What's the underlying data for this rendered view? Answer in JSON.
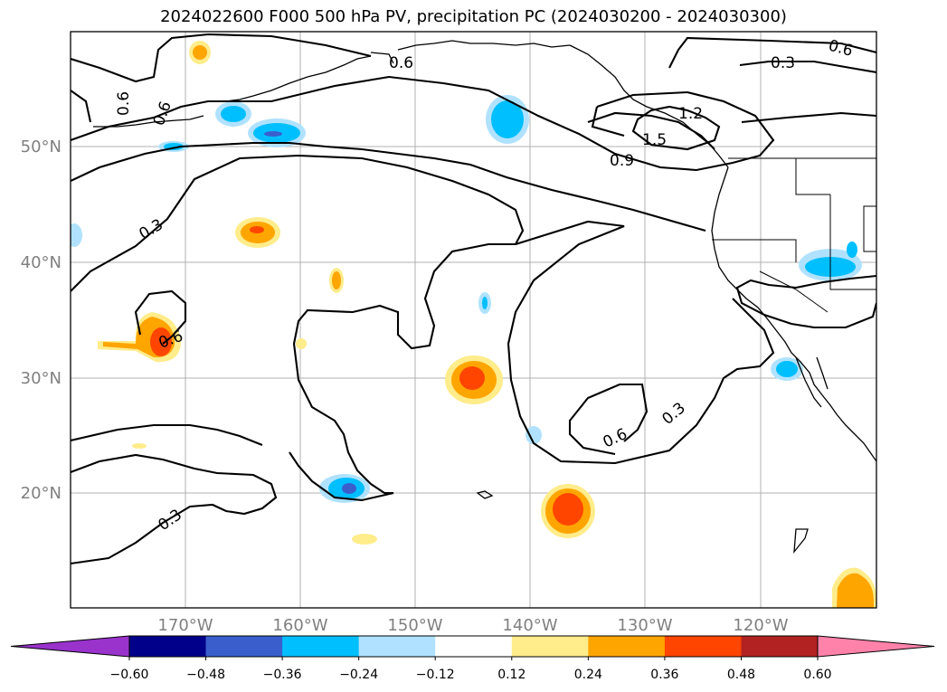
{
  "title": "2024022600 F000 500 hPa PV, precipitation PC (2024030200 - 2024030300)",
  "map": {
    "lat_labels": [
      "50°N",
      "40°N",
      "30°N",
      "20°N"
    ],
    "lon_labels": [
      "170°W",
      "160°W",
      "150°W",
      "140°W",
      "130°W",
      "120°W"
    ],
    "contour_labels": [
      "0.6",
      "0.3",
      "0.9",
      "1.2",
      "1.5",
      "0.6",
      "0.6",
      "0.3",
      "0.6",
      "0.3",
      "0.6",
      "0.3",
      "0.6",
      "0.6",
      "0.3"
    ],
    "contour_line_color": "#000000",
    "grid_color": "#b0b0b0"
  },
  "colorbar": {
    "tick_labels": [
      "−0.60",
      "−0.48",
      "−0.36",
      "−0.24",
      "−0.12",
      "0.12",
      "0.24",
      "0.36",
      "0.48",
      "0.60"
    ],
    "colors": [
      "#9933cc",
      "#00008b",
      "#3a5fcd",
      "#00bfff",
      "#b0e2ff",
      "#ffffff",
      "#ffec8b",
      "#ffa500",
      "#ff4500",
      "#b22222",
      "#ff82ab"
    ]
  }
}
